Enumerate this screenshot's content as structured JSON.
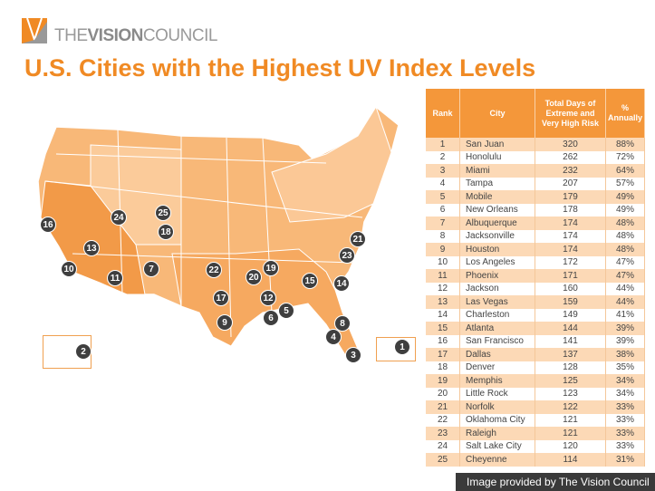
{
  "header": {
    "brand_light_1": "THE",
    "brand_bold": "VISION",
    "brand_light_2": "COUNCIL",
    "title": "U.S. Cities with the Highest UV Index Levels"
  },
  "colors": {
    "accent": "#f08a24",
    "header_bg": "#f4973a",
    "row_alt": "#fcd9b6",
    "marker": "#3f3f3f"
  },
  "map": {
    "markers": [
      "1",
      "2",
      "3",
      "4",
      "5",
      "6",
      "7",
      "8",
      "9",
      "10",
      "11",
      "12",
      "13",
      "14",
      "15",
      "16",
      "17",
      "18",
      "19",
      "20",
      "21",
      "22",
      "23",
      "24",
      "25"
    ]
  },
  "table": {
    "headers": [
      "Rank",
      "City",
      "Total Days of Extreme and Very High Risk",
      "% Annually"
    ],
    "rows": [
      [
        "1",
        "San Juan",
        "320",
        "88%"
      ],
      [
        "2",
        "Honolulu",
        "262",
        "72%"
      ],
      [
        "3",
        "Miami",
        "232",
        "64%"
      ],
      [
        "4",
        "Tampa",
        "207",
        "57%"
      ],
      [
        "5",
        "Mobile",
        "179",
        "49%"
      ],
      [
        "6",
        "New Orleans",
        "178",
        "49%"
      ],
      [
        "7",
        "Albuquerque",
        "174",
        "48%"
      ],
      [
        "8",
        "Jacksonville",
        "174",
        "48%"
      ],
      [
        "9",
        "Houston",
        "174",
        "48%"
      ],
      [
        "10",
        "Los Angeles",
        "172",
        "47%"
      ],
      [
        "11",
        "Phoenix",
        "171",
        "47%"
      ],
      [
        "12",
        "Jackson",
        "160",
        "44%"
      ],
      [
        "13",
        "Las Vegas",
        "159",
        "44%"
      ],
      [
        "14",
        "Charleston",
        "149",
        "41%"
      ],
      [
        "15",
        "Atlanta",
        "144",
        "39%"
      ],
      [
        "16",
        "San Francisco",
        "141",
        "39%"
      ],
      [
        "17",
        "Dallas",
        "137",
        "38%"
      ],
      [
        "18",
        "Denver",
        "128",
        "35%"
      ],
      [
        "19",
        "Memphis",
        "125",
        "34%"
      ],
      [
        "20",
        "Little Rock",
        "123",
        "34%"
      ],
      [
        "21",
        "Norfolk",
        "122",
        "33%"
      ],
      [
        "22",
        "Oklahoma City",
        "121",
        "33%"
      ],
      [
        "23",
        "Raleigh",
        "121",
        "33%"
      ],
      [
        "24",
        "Salt Lake City",
        "120",
        "33%"
      ],
      [
        "25",
        "Cheyenne",
        "114",
        "31%"
      ]
    ]
  },
  "footer": {
    "credit": "Image provided by The Vision Council"
  }
}
